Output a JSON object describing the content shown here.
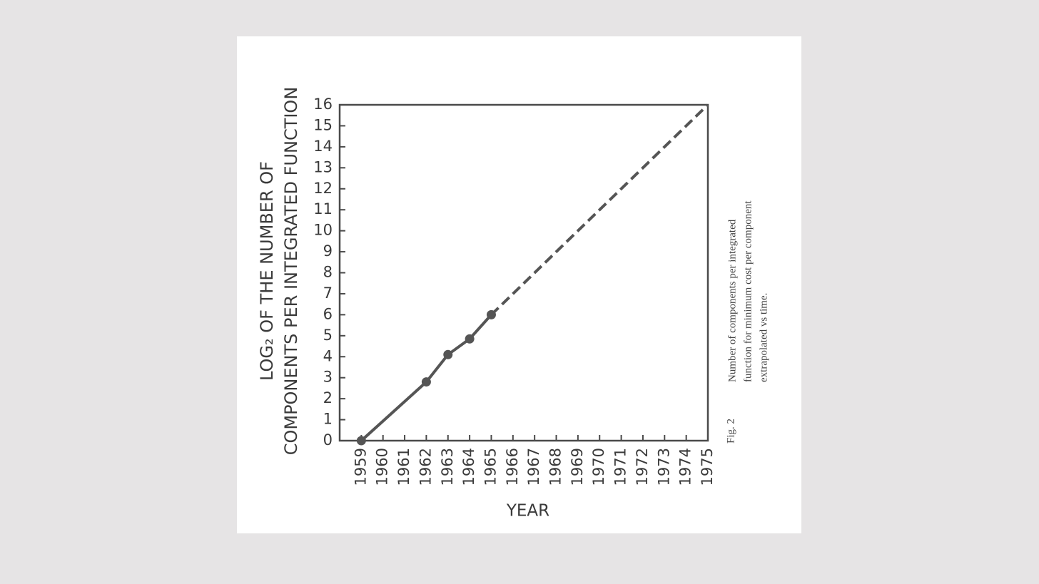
{
  "chart_data": {
    "type": "line",
    "ylabel": [
      "LOG₂ OF THE NUMBER OF",
      "COMPONENTS PER INTEGRATED FUNCTION"
    ],
    "xlabel": "YEAR",
    "caption": {
      "figure": "Fig. 2",
      "lines": [
        "Number of components per integrated",
        "function for minimum cost per component",
        "extrapolated vs time."
      ]
    },
    "x": [
      1959,
      1962,
      1963,
      1964,
      1965
    ],
    "values": [
      0,
      2.8,
      4.1,
      4.85,
      6
    ],
    "color": "#555555",
    "extrapolation": {
      "x": [
        1965,
        1975
      ],
      "values": [
        6,
        16
      ]
    },
    "xlim": [
      1958,
      1975
    ],
    "xticks": [
      1959,
      1960,
      1961,
      1962,
      1963,
      1964,
      1965,
      1966,
      1967,
      1968,
      1969,
      1970,
      1971,
      1972,
      1973,
      1974,
      1975
    ],
    "ylim": [
      0,
      16
    ],
    "yticks": [
      0,
      1,
      2,
      3,
      4,
      5,
      6,
      7,
      8,
      9,
      10,
      11,
      12,
      13,
      14,
      15,
      16
    ]
  }
}
